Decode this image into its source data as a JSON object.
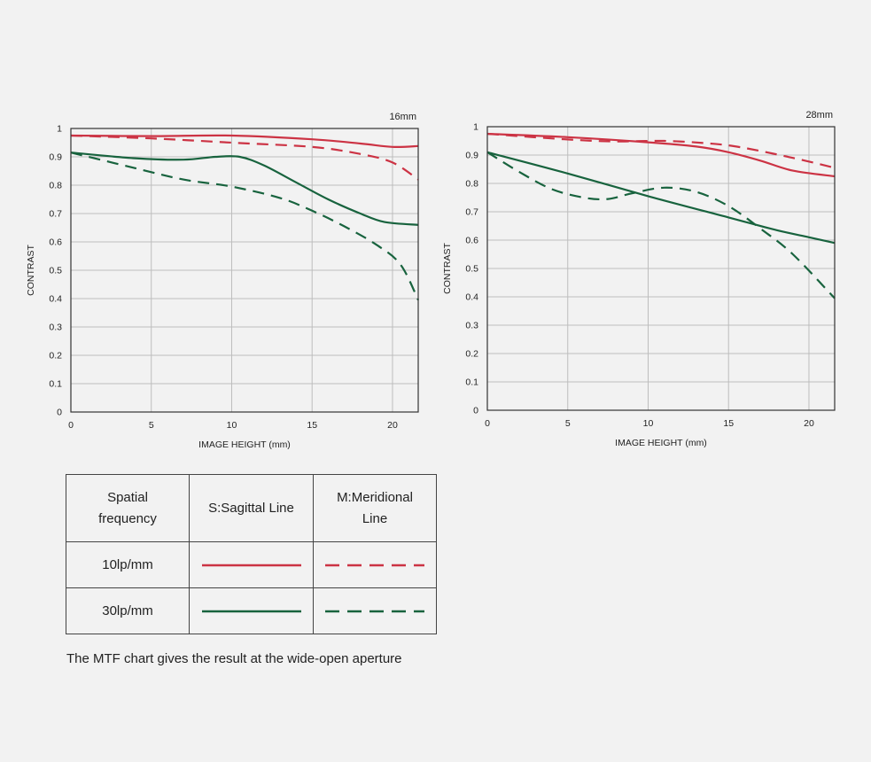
{
  "colors": {
    "red": "#cc3344",
    "green": "#18633e",
    "grid": "#bdbdbd",
    "axis": "#333333"
  },
  "chart_data": [
    {
      "type": "line",
      "title": "16mm",
      "xlabel": "IMAGE HEIGHT (mm)",
      "ylabel": "CONTRAST",
      "xlim": [
        0,
        21.6
      ],
      "ylim": [
        0,
        1
      ],
      "x_ticks": [
        0,
        5,
        10,
        15,
        20
      ],
      "y_ticks": [
        0,
        0.1,
        0.2,
        0.3,
        0.4,
        0.5,
        0.6,
        0.7,
        0.8,
        0.9,
        1
      ],
      "x_tick_labels": [
        "0",
        "5",
        "10",
        "15",
        "20"
      ],
      "y_tick_labels": [
        "0",
        "0.1",
        "0.2",
        "0.3",
        "0.4",
        "0.5",
        "0.6",
        "0.7",
        "0.8",
        "0.9",
        "1"
      ],
      "grid": true,
      "series": [
        {
          "frequency": "10lp/mm",
          "line": "S:Sagittal",
          "style": "solid",
          "color": "red",
          "points": [
            [
              0,
              0.975
            ],
            [
              5,
              0.973
            ],
            [
              10,
              0.975
            ],
            [
              15,
              0.962
            ],
            [
              18,
              0.947
            ],
            [
              20,
              0.935
            ],
            [
              21.6,
              0.938
            ]
          ]
        },
        {
          "frequency": "10lp/mm",
          "line": "M:Meridional",
          "style": "dashed",
          "color": "red",
          "points": [
            [
              0,
              0.975
            ],
            [
              5,
              0.965
            ],
            [
              10,
              0.95
            ],
            [
              15,
              0.935
            ],
            [
              18,
              0.91
            ],
            [
              20,
              0.88
            ],
            [
              21.6,
              0.82
            ]
          ]
        },
        {
          "frequency": "30lp/mm",
          "line": "S:Sagittal",
          "style": "solid",
          "color": "green",
          "points": [
            [
              0,
              0.915
            ],
            [
              4,
              0.895
            ],
            [
              7,
              0.89
            ],
            [
              9,
              0.9
            ],
            [
              10.5,
              0.9
            ],
            [
              12,
              0.87
            ],
            [
              14,
              0.81
            ],
            [
              16,
              0.75
            ],
            [
              18,
              0.7
            ],
            [
              19.5,
              0.67
            ],
            [
              21.6,
              0.66
            ]
          ]
        },
        {
          "frequency": "30lp/mm",
          "line": "M:Meridional",
          "style": "dashed",
          "color": "green",
          "points": [
            [
              0,
              0.915
            ],
            [
              4,
              0.86
            ],
            [
              7,
              0.82
            ],
            [
              10,
              0.795
            ],
            [
              13,
              0.755
            ],
            [
              15,
              0.71
            ],
            [
              17,
              0.655
            ],
            [
              19,
              0.59
            ],
            [
              20.5,
              0.52
            ],
            [
              21.6,
              0.395
            ]
          ]
        }
      ]
    },
    {
      "type": "line",
      "title": "28mm",
      "xlabel": "IMAGE HEIGHT (mm)",
      "ylabel": "CONTRAST",
      "xlim": [
        0,
        21.6
      ],
      "ylim": [
        0,
        1
      ],
      "x_ticks": [
        0,
        5,
        10,
        15,
        20
      ],
      "y_ticks": [
        0,
        0.1,
        0.2,
        0.3,
        0.4,
        0.5,
        0.6,
        0.7,
        0.8,
        0.9,
        1
      ],
      "x_tick_labels": [
        "0",
        "5",
        "10",
        "15",
        "20"
      ],
      "y_tick_labels": [
        "0",
        "0.1",
        "0.2",
        "0.3",
        "0.4",
        "0.5",
        "0.6",
        "0.7",
        "0.8",
        "0.9",
        "1"
      ],
      "grid": true,
      "series": [
        {
          "frequency": "10lp/mm",
          "line": "S:Sagittal",
          "style": "solid",
          "color": "red",
          "points": [
            [
              0,
              0.975
            ],
            [
              5,
              0.963
            ],
            [
              10,
              0.945
            ],
            [
              13,
              0.93
            ],
            [
              15,
              0.91
            ],
            [
              17,
              0.88
            ],
            [
              19,
              0.845
            ],
            [
              21.6,
              0.825
            ]
          ]
        },
        {
          "frequency": "10lp/mm",
          "line": "M:Meridional",
          "style": "dashed",
          "color": "red",
          "points": [
            [
              0,
              0.975
            ],
            [
              5,
              0.955
            ],
            [
              8,
              0.948
            ],
            [
              11,
              0.95
            ],
            [
              14,
              0.94
            ],
            [
              16,
              0.925
            ],
            [
              19,
              0.89
            ],
            [
              21.6,
              0.855
            ]
          ]
        },
        {
          "frequency": "30lp/mm",
          "line": "S:Sagittal",
          "style": "solid",
          "color": "green",
          "points": [
            [
              0,
              0.91
            ],
            [
              5,
              0.835
            ],
            [
              10,
              0.755
            ],
            [
              15,
              0.68
            ],
            [
              18,
              0.635
            ],
            [
              20,
              0.61
            ],
            [
              21.6,
              0.59
            ]
          ]
        },
        {
          "frequency": "30lp/mm",
          "line": "M:Meridional",
          "style": "dashed",
          "color": "green",
          "points": [
            [
              0,
              0.91
            ],
            [
              2,
              0.84
            ],
            [
              4,
              0.78
            ],
            [
              6,
              0.75
            ],
            [
              7.5,
              0.745
            ],
            [
              9,
              0.765
            ],
            [
              11,
              0.785
            ],
            [
              13,
              0.77
            ],
            [
              15,
              0.72
            ],
            [
              17,
              0.64
            ],
            [
              19,
              0.55
            ],
            [
              21.6,
              0.395
            ]
          ]
        }
      ]
    }
  ],
  "legend_table": {
    "header": {
      "col1": "Spatial\nfrequency",
      "col2": "S:Sagittal Line",
      "col3": "M:Meridional\nLine"
    },
    "rows": [
      {
        "label": "10lp/mm",
        "color": "red"
      },
      {
        "label": "30lp/mm",
        "color": "green"
      }
    ]
  },
  "footnote": "The MTF chart gives the result at the wide-open aperture"
}
